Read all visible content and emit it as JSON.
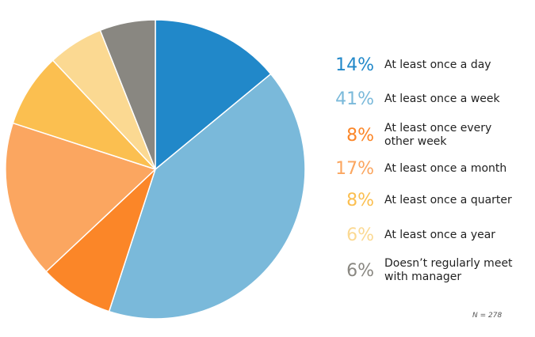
{
  "chart_data": {
    "type": "pie",
    "categories": [
      "At least once a day",
      "At least once a week",
      "At least once every other week",
      "At least once a month",
      "At least once a quarter",
      "At least once a year",
      "Doesn’t regularly meet with manager"
    ],
    "values": [
      14,
      41,
      8,
      17,
      8,
      6,
      6
    ],
    "value_labels": [
      "14%",
      "41%",
      "8%",
      "17%",
      "8%",
      "6%",
      "6%"
    ],
    "colors": [
      "#2188c9",
      "#7ab9da",
      "#fb8628",
      "#fba660",
      "#fbbf50",
      "#fbd992",
      "#898781"
    ],
    "start": "12 o'clock",
    "direction": "clockwise",
    "legend_placement": "right",
    "note": "N = 278"
  }
}
